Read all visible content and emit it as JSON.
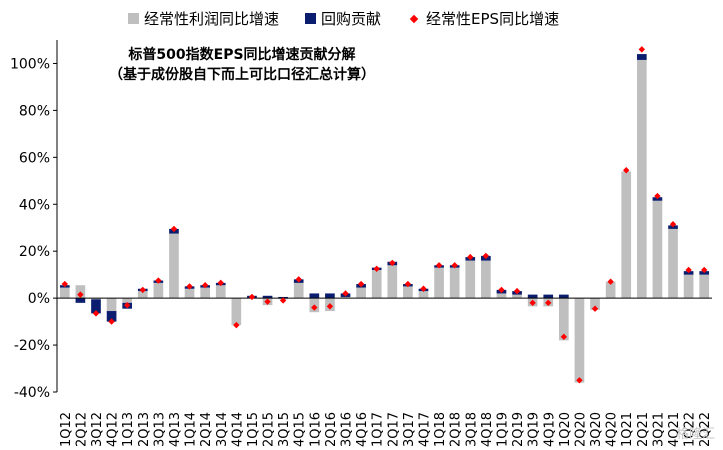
{
  "chart_data": {
    "type": "bar",
    "title": "标普500指数EPS同比增速贡献分解",
    "subtitle": "（基于成份股自下而上可比口径汇总计算）",
    "legend": [
      {
        "name": "经常性利润同比增速",
        "color": "#bfbfbf",
        "marker": "square"
      },
      {
        "name": "回购贡献",
        "color": "#0b1d6e",
        "marker": "square"
      },
      {
        "name": "经常性EPS同比增速",
        "color": "#ff0000",
        "marker": "diamond"
      }
    ],
    "legend_position": "top",
    "categories": [
      "1Q12",
      "2Q12",
      "3Q12",
      "4Q12",
      "1Q13",
      "2Q13",
      "3Q13",
      "4Q13",
      "1Q14",
      "2Q14",
      "3Q14",
      "4Q14",
      "1Q15",
      "2Q15",
      "3Q15",
      "4Q15",
      "1Q16",
      "2Q16",
      "3Q16",
      "4Q16",
      "1Q17",
      "2Q17",
      "3Q17",
      "4Q17",
      "1Q18",
      "2Q18",
      "3Q18",
      "4Q18",
      "1Q19",
      "2Q19",
      "3Q19",
      "4Q19",
      "1Q20",
      "2Q20",
      "3Q20",
      "4Q20",
      "1Q21",
      "2Q21",
      "3Q21",
      "4Q21",
      "1Q22",
      "2Q22"
    ],
    "series": [
      {
        "name": "经常性利润同比增速",
        "type": "bar",
        "values": [
          4.5,
          5.5,
          -0.5,
          -5.5,
          -2.0,
          3.0,
          6.5,
          27.5,
          4.0,
          4.5,
          5.5,
          -11.5,
          0.0,
          -3.0,
          -0.5,
          6.5,
          -6.0,
          -5.5,
          0.5,
          4.5,
          12.0,
          14.0,
          5.0,
          3.0,
          13.0,
          13.0,
          16.0,
          16.0,
          2.0,
          1.5,
          -3.5,
          -3.5,
          -18.0,
          -36.0,
          -5.0,
          7.0,
          54.0,
          101.5,
          41.5,
          29.5,
          10.0,
          10.0
        ]
      },
      {
        "name": "回购贡献",
        "type": "bar",
        "values": [
          1.0,
          -2.0,
          -6.0,
          -4.5,
          -2.5,
          1.0,
          1.0,
          2.0,
          1.0,
          1.0,
          1.0,
          0.0,
          1.0,
          1.0,
          0.5,
          1.5,
          2.0,
          2.0,
          1.5,
          1.5,
          1.0,
          1.5,
          1.0,
          1.0,
          1.0,
          1.0,
          1.5,
          2.0,
          1.5,
          1.5,
          1.5,
          1.5,
          1.5,
          0.0,
          0.0,
          0.0,
          0.0,
          2.5,
          1.5,
          1.5,
          1.5,
          1.5
        ]
      },
      {
        "name": "经常性EPS同比增速",
        "type": "scatter",
        "values": [
          6.0,
          1.5,
          -6.5,
          -10.0,
          -3.0,
          3.5,
          7.5,
          29.5,
          5.0,
          5.5,
          6.5,
          -11.5,
          0.5,
          -1.5,
          -1.0,
          8.0,
          -4.0,
          -3.5,
          2.0,
          6.0,
          12.5,
          15.0,
          6.0,
          4.0,
          14.0,
          14.0,
          17.5,
          18.0,
          3.5,
          3.0,
          -2.0,
          -2.0,
          -16.5,
          -35.0,
          -4.5,
          7.0,
          54.5,
          106.0,
          43.5,
          31.5,
          12.0,
          12.0
        ]
      }
    ],
    "ylim": [
      -40,
      110
    ],
    "yticks": [
      -40,
      -20,
      0,
      20,
      40,
      60,
      80,
      100
    ],
    "ytick_labels": [
      "-40%",
      "-20%",
      "0%",
      "20%",
      "40%",
      "60%",
      "80%",
      "100%"
    ],
    "xlabel": "",
    "ylabel": "",
    "grid": false
  },
  "watermark": "格隆汇"
}
